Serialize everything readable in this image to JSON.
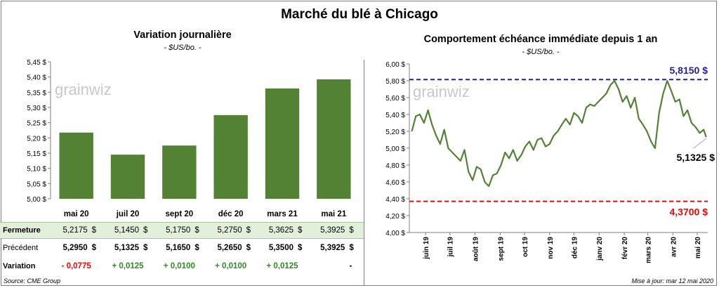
{
  "title": "Marché du blé à Chicago",
  "left": {
    "title": "Variation  journalière",
    "unit": "- $US/bo. -",
    "watermark": "grainwiz",
    "categories": [
      "mai 20",
      "juil 20",
      "sept 20",
      "déc 20",
      "mars 21",
      "mai 21"
    ],
    "yticks": [
      "5,45 $",
      "5,40 $",
      "5,35 $",
      "5,30 $",
      "5,25 $",
      "5,20 $",
      "5,15 $",
      "5,10 $",
      "5,05 $",
      "5,00 $"
    ],
    "table": {
      "rows": [
        {
          "label": "Fermeture",
          "values": [
            "5,2175",
            "5,1450",
            "5,1750",
            "5,2750",
            "5,3625",
            "5,3925"
          ],
          "suffix": "$"
        },
        {
          "label": "Précédent",
          "values": [
            "5,2950",
            "5,1325",
            "5,1650",
            "5,2650",
            "5,3500",
            "5,3925"
          ],
          "suffix": "$"
        },
        {
          "label": "Variation",
          "values": [
            "- 0,0775",
            "+ 0,0125",
            "+ 0,0100",
            "+ 0,0100",
            "+ 0,0125",
            "-"
          ],
          "suffix": ""
        }
      ]
    },
    "source": "Source: CME Group"
  },
  "right": {
    "title": "Comportement  échéance immédiate depuis 1 an",
    "unit": "- $US/bo. -",
    "watermark": "grainwiz",
    "yticks": [
      "6,00 $",
      "5,80 $",
      "5,60 $",
      "5,40 $",
      "5,20 $",
      "5,00 $",
      "4,80 $",
      "4,60 $",
      "4,40 $",
      "4,20 $",
      "4,00 $"
    ],
    "xticks": [
      "juin 19",
      "juil 19",
      "août 19",
      "sept 19",
      "oct 19",
      "nov 19",
      "déc 19",
      "janv 20",
      "févr 20",
      "mars 20",
      "avr 20",
      "mai 20"
    ],
    "high_label": "5,8150 $",
    "low_label": "4,3700 $",
    "last_label": "5,1325 $",
    "updated": "Mise à jour: mar 12 mai 2020"
  },
  "colors": {
    "bar": "#548235",
    "line": "#548235",
    "high": "#1f1fa8",
    "low": "#ff0000",
    "positive": "#2e8b22",
    "negative": "#ff0000",
    "fermeture_bg": "#e2efda"
  },
  "chart_data": [
    {
      "type": "bar",
      "title": "Variation  journalière",
      "categories": [
        "mai 20",
        "juil 20",
        "sept 20",
        "déc 20",
        "mars 21",
        "mai 21"
      ],
      "values": [
        5.2175,
        5.145,
        5.175,
        5.275,
        5.3625,
        5.3925
      ],
      "ylim": [
        5.0,
        5.45
      ],
      "grid": false
    },
    {
      "type": "line",
      "title": "Comportement  échéance immédiate depuis 1 an",
      "ylim": [
        4.0,
        6.0
      ],
      "x": [
        "2019-05-15",
        "2019-05-20",
        "2019-05-25",
        "2019-05-30",
        "2019-06-04",
        "2019-06-09",
        "2019-06-14",
        "2019-06-19",
        "2019-06-24",
        "2019-06-29",
        "2019-07-04",
        "2019-07-09",
        "2019-07-14",
        "2019-07-19",
        "2019-07-24",
        "2019-07-29",
        "2019-08-03",
        "2019-08-08",
        "2019-08-13",
        "2019-08-18",
        "2019-08-23",
        "2019-08-28",
        "2019-09-02",
        "2019-09-07",
        "2019-09-12",
        "2019-09-17",
        "2019-09-22",
        "2019-09-27",
        "2019-10-02",
        "2019-10-07",
        "2019-10-12",
        "2019-10-17",
        "2019-10-22",
        "2019-10-27",
        "2019-11-01",
        "2019-11-06",
        "2019-11-11",
        "2019-11-16",
        "2019-11-21",
        "2019-11-26",
        "2019-12-01",
        "2019-12-06",
        "2019-12-11",
        "2019-12-16",
        "2019-12-21",
        "2019-12-26",
        "2019-12-31",
        "2020-01-05",
        "2020-01-10",
        "2020-01-15",
        "2020-01-20",
        "2020-01-25",
        "2020-01-30",
        "2020-02-04",
        "2020-02-09",
        "2020-02-14",
        "2020-02-19",
        "2020-02-24",
        "2020-02-29",
        "2020-03-05",
        "2020-03-10",
        "2020-03-15",
        "2020-03-20",
        "2020-03-25",
        "2020-03-30",
        "2020-04-04",
        "2020-04-09",
        "2020-04-14",
        "2020-04-19",
        "2020-04-24",
        "2020-04-29",
        "2020-05-04",
        "2020-05-09",
        "2020-05-12"
      ],
      "values": [
        5.2,
        5.38,
        5.4,
        5.3,
        5.45,
        5.28,
        5.15,
        5.05,
        5.22,
        5.0,
        4.95,
        4.9,
        4.85,
        4.98,
        4.72,
        4.62,
        4.78,
        4.75,
        4.6,
        4.55,
        4.68,
        4.7,
        4.8,
        4.95,
        4.88,
        4.98,
        4.85,
        4.92,
        5.02,
        5.08,
        4.98,
        5.1,
        5.12,
        5.02,
        5.05,
        5.15,
        5.2,
        5.28,
        5.35,
        5.28,
        5.42,
        5.38,
        5.3,
        5.48,
        5.52,
        5.5,
        5.55,
        5.6,
        5.65,
        5.75,
        5.8,
        5.7,
        5.55,
        5.62,
        5.48,
        5.6,
        5.35,
        5.28,
        5.2,
        5.08,
        5.0,
        5.42,
        5.65,
        5.8,
        5.68,
        5.55,
        5.58,
        5.38,
        5.45,
        5.3,
        5.25,
        5.18,
        5.22,
        5.1325
      ],
      "hlines": [
        5.815,
        4.37
      ]
    }
  ]
}
